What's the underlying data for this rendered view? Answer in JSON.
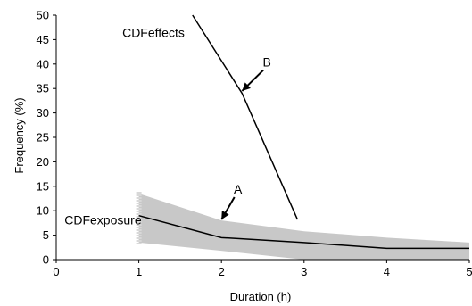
{
  "chart_data": {
    "type": "line",
    "title": "",
    "xlabel": "Duration (h)",
    "ylabel": "Frequency (%)",
    "xlim": [
      0,
      5
    ],
    "ylim": [
      0,
      50
    ],
    "x_ticks": [
      0,
      1,
      2,
      3,
      4,
      5
    ],
    "y_ticks": [
      0,
      5,
      10,
      15,
      20,
      25,
      30,
      35,
      40,
      45,
      50
    ],
    "grid": false,
    "legend": "none",
    "series": [
      {
        "name": "CDFexposure",
        "color": "#000000",
        "x": [
          1,
          2,
          3,
          4,
          5
        ],
        "y": [
          9,
          4.5,
          3.5,
          2.3,
          2.3
        ]
      },
      {
        "name": "CDFeffects",
        "color": "#000000",
        "x": [
          1.65,
          2.25,
          2.92
        ],
        "y": [
          50,
          34,
          8.2
        ]
      }
    ],
    "band": {
      "label": "CDFexposure",
      "color": "#c8c8c8",
      "x": [
        1,
        2,
        3,
        4,
        5
      ],
      "upper": [
        13.5,
        8,
        5.8,
        4.5,
        3.5
      ],
      "lower": [
        3.5,
        1.8,
        0,
        0,
        0
      ]
    },
    "annotations": [
      {
        "text": "A",
        "x": 2.2,
        "y": 13.5,
        "arrow_to": [
          2.0,
          8.2
        ]
      },
      {
        "text": "B",
        "x": 2.55,
        "y": 39.5,
        "arrow_to": [
          2.25,
          34.5
        ]
      }
    ],
    "curve_labels": [
      {
        "text": "CDFeffects",
        "series": "CDFeffects",
        "x": 0.8,
        "y": 45.5
      },
      {
        "text": "CDFexposure",
        "series": "CDFexposure",
        "x": 0.1,
        "y": 7.2
      }
    ]
  }
}
